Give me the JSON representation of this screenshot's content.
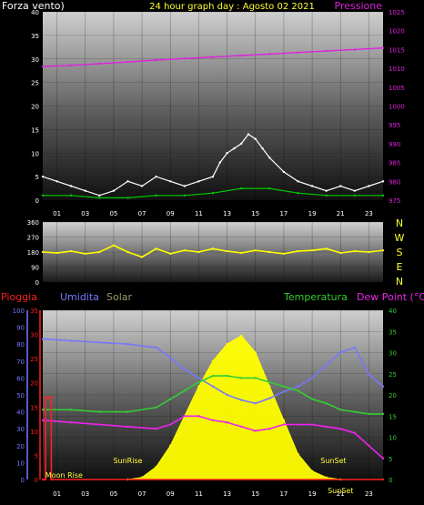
{
  "header": {
    "left_label": "Forza vento)",
    "title": "24 hour graph day : Agosto 02 2021",
    "right_label": "Pressione"
  },
  "colors": {
    "background": "#000000",
    "wind_gust": "#ffffff",
    "wind_avg": "#00cc00",
    "pressure": "#dd22dd",
    "wind_dir": "#ffff00",
    "rain": "#ff2020",
    "humidity": "#7777ff",
    "solar": "#ffff00",
    "temperature": "#33cc33",
    "dew_point": "#ee22ee",
    "title": "#ffff33",
    "axis_text": "#ffffff"
  },
  "hour_ticks": [
    "01",
    "03",
    "05",
    "07",
    "09",
    "11",
    "13",
    "15",
    "17",
    "19",
    "21",
    "23"
  ],
  "chart_data": [
    {
      "type": "line",
      "panel": "wind_pressure",
      "x_range_hours": [
        0,
        24
      ],
      "y_left": {
        "label": "Forza vento)",
        "ylim": [
          0,
          40
        ],
        "ticks": [
          "0",
          "5",
          "10",
          "15",
          "20",
          "25",
          "30",
          "35",
          "40"
        ]
      },
      "y_right": {
        "label": "Pressione",
        "ylim": [
          975,
          1025
        ],
        "ticks": [
          "975",
          "980",
          "985",
          "990",
          "995",
          "1000",
          "1005",
          "1010",
          "1015",
          "1020",
          "1025"
        ]
      },
      "grid": true,
      "series": [
        {
          "key": "pressure",
          "axis": "right",
          "x": [
            0,
            2,
            4,
            6,
            8,
            10,
            12,
            14,
            16,
            18,
            20,
            22,
            24
          ],
          "values": [
            1010.5,
            1010.8,
            1011.2,
            1011.7,
            1012.2,
            1012.6,
            1013.0,
            1013.4,
            1013.8,
            1014.2,
            1014.6,
            1015.0,
            1015.4
          ]
        },
        {
          "key": "wind_gust",
          "axis": "left",
          "x": [
            0,
            1,
            2,
            3,
            4,
            5,
            6,
            7,
            8,
            9,
            10,
            11,
            12,
            12.5,
            13,
            13.5,
            14,
            14.5,
            15,
            15.5,
            16,
            17,
            18,
            19,
            20,
            21,
            22,
            23,
            24
          ],
          "values": [
            5,
            4,
            3,
            2,
            1,
            2,
            4,
            3,
            5,
            4,
            3,
            4,
            5,
            8,
            10,
            11,
            12,
            14,
            13,
            11,
            9,
            6,
            4,
            3,
            2,
            3,
            2,
            3,
            4
          ]
        },
        {
          "key": "wind_avg",
          "axis": "left",
          "x": [
            0,
            2,
            4,
            6,
            8,
            10,
            12,
            14,
            16,
            18,
            20,
            22,
            24
          ],
          "values": [
            1,
            1,
            0.5,
            0.5,
            1,
            1,
            1.5,
            2.5,
            2.5,
            1.5,
            1,
            1,
            1
          ]
        }
      ]
    },
    {
      "type": "line",
      "panel": "wind_direction",
      "x_range_hours": [
        0,
        24
      ],
      "y_left": {
        "ylim": [
          0,
          360
        ],
        "ticks": [
          "0",
          "90",
          "180",
          "270",
          "360"
        ]
      },
      "y_right_labels": [
        "N",
        "W",
        "S",
        "E",
        "N"
      ],
      "series": [
        {
          "key": "wind_dir",
          "x": [
            0,
            1,
            2,
            3,
            4,
            5,
            6,
            7,
            8,
            9,
            10,
            11,
            12,
            13,
            14,
            15,
            16,
            17,
            18,
            19,
            20,
            21,
            22,
            23,
            24
          ],
          "values": [
            180,
            175,
            185,
            170,
            180,
            220,
            180,
            150,
            200,
            170,
            190,
            180,
            200,
            185,
            175,
            190,
            180,
            170,
            185,
            190,
            200,
            175,
            185,
            180,
            190
          ]
        }
      ]
    },
    {
      "type": "line",
      "panel": "weather",
      "x_range_hours": [
        0,
        24
      ],
      "labels": [
        "Pioggia",
        "Umidita",
        "Solar",
        "Temperatura",
        "Dew Point (°C)"
      ],
      "axis_rain": {
        "ylim": [
          0,
          35
        ],
        "ticks": [
          "0",
          "5",
          "10",
          "15",
          "20",
          "25",
          "30",
          "35"
        ]
      },
      "axis_humidity": {
        "ylim": [
          0,
          100
        ],
        "ticks": [
          "0",
          "10",
          "20",
          "30",
          "40",
          "50",
          "60",
          "70",
          "80",
          "90",
          "100"
        ]
      },
      "axis_temperature": {
        "ylim": [
          0,
          40
        ],
        "ticks": [
          "0",
          "5",
          "10",
          "15",
          "20",
          "25",
          "30",
          "35",
          "40"
        ]
      },
      "annotations": [
        {
          "text": "Moon Rise",
          "hour": 1.5
        },
        {
          "text": "SunRise",
          "hour": 6
        },
        {
          "text": "SunSet",
          "hour": 20.5
        },
        {
          "text": "SunSet",
          "hour": 21
        }
      ],
      "series": [
        {
          "key": "humidity",
          "axis": "humidity",
          "x": [
            0,
            2,
            4,
            6,
            8,
            9,
            10,
            11,
            12,
            13,
            14,
            15,
            16,
            17,
            18,
            19,
            20,
            21,
            22,
            23,
            24
          ],
          "values": [
            83,
            82,
            81,
            80,
            78,
            72,
            65,
            60,
            55,
            50,
            47,
            45,
            48,
            52,
            55,
            60,
            68,
            75,
            78,
            62,
            55
          ]
        },
        {
          "key": "temperature",
          "axis": "temperature",
          "x": [
            0,
            2,
            4,
            6,
            8,
            9,
            10,
            11,
            12,
            13,
            14,
            15,
            16,
            17,
            18,
            19,
            20,
            21,
            22,
            23,
            24
          ],
          "values": [
            16.5,
            16.5,
            16,
            16,
            17,
            19,
            21,
            23,
            24.5,
            24.5,
            24,
            24,
            23,
            22,
            21,
            19,
            18,
            16.5,
            16,
            15.5,
            15.5
          ]
        },
        {
          "key": "dew_point",
          "axis": "temperature",
          "x": [
            0,
            2,
            4,
            6,
            8,
            9,
            10,
            11,
            12,
            13,
            14,
            15,
            16,
            17,
            18,
            19,
            20,
            21,
            22,
            23,
            24
          ],
          "values": [
            14,
            13.5,
            13,
            12.5,
            12,
            13,
            15,
            15,
            14,
            13.5,
            12.5,
            11.5,
            12,
            13,
            13,
            13,
            12.5,
            12,
            11,
            8,
            5
          ]
        },
        {
          "key": "solar",
          "axis": "temperature",
          "x": [
            6,
            7,
            8,
            9,
            10,
            11,
            12,
            13,
            14,
            15,
            16,
            17,
            18,
            19,
            20,
            21
          ],
          "values": [
            0,
            0.5,
            3,
            8,
            15,
            22,
            28,
            32,
            34,
            30,
            22,
            14,
            6,
            2,
            0.5,
            0
          ]
        },
        {
          "key": "rain",
          "axis": "rain",
          "x": [
            0,
            0.2,
            0.2,
            0.6,
            0.6,
            24
          ],
          "values": [
            0,
            0,
            17,
            17,
            0,
            0
          ]
        }
      ]
    }
  ]
}
